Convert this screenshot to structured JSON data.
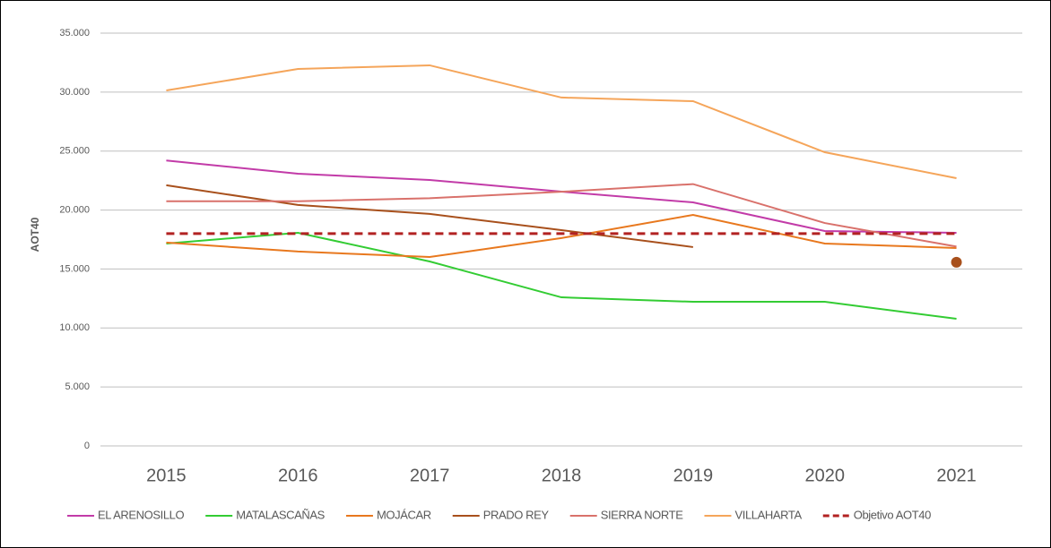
{
  "chart_data": {
    "type": "line",
    "y_label": "AOT40",
    "categories": [
      "2015",
      "2016",
      "2017",
      "2018",
      "2019",
      "2020",
      "2021"
    ],
    "series": [
      {
        "name": "EL ARENOSILLO",
        "color": "#c23ba8",
        "values": [
          24200,
          23080,
          22550,
          21560,
          20650,
          18220,
          18070
        ]
      },
      {
        "name": "MATALASCAÑAS",
        "color": "#33cc33",
        "values": [
          17160,
          18070,
          15640,
          12600,
          12220,
          12220,
          10780
        ]
      },
      {
        "name": "MOJÁCAR",
        "color": "#e8781e",
        "values": [
          17240,
          16480,
          16020,
          17620,
          19590,
          17160,
          16780
        ]
      },
      {
        "name": "PRADO REY",
        "color": "#a8501c",
        "values": [
          22100,
          20430,
          19670,
          18300,
          16860,
          null,
          15570
        ]
      },
      {
        "name": "SIERRA NORTE",
        "color": "#d9716b",
        "values": [
          20750,
          20750,
          21000,
          21550,
          22200,
          18900,
          16900
        ]
      },
      {
        "name": "VILLAHARTA",
        "color": "#f5a55a",
        "values": [
          30140,
          31960,
          32270,
          29540,
          29230,
          24900,
          22700
        ]
      },
      {
        "name": "Objetivo AOT40",
        "color": "#b22222",
        "dashed": true,
        "values": [
          18000,
          18000,
          18000,
          18000,
          18000,
          18000,
          18000
        ]
      }
    ],
    "ylim": [
      0,
      35000
    ],
    "yticks": [
      0,
      {
        "value": 5000,
        "label": "5.000"
      },
      {
        "value": 10000,
        "label": "10.000"
      },
      {
        "value": 15000,
        "label": "15.000"
      },
      {
        "value": 20000,
        "label": "20.000"
      },
      {
        "value": 25000,
        "label": "25.000"
      },
      {
        "value": 30000,
        "label": "30.000"
      },
      {
        "value": 35000,
        "label": "35.000"
      }
    ],
    "grid": true,
    "legend": "bottom"
  }
}
